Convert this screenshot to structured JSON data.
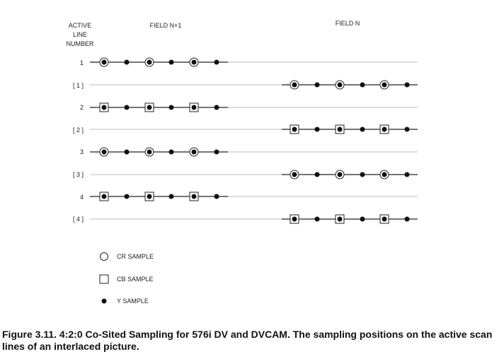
{
  "header": {
    "active_line_label": [
      "ACTIVE",
      "LINE",
      "NUMBER"
    ],
    "field_left": "FIELD N+1",
    "field_right": "FIELD N"
  },
  "rows": [
    {
      "label": "1",
      "field": "left",
      "chroma": "cr"
    },
    {
      "label": "[ 1 ]",
      "field": "right",
      "chroma": "cr"
    },
    {
      "label": "2",
      "field": "left",
      "chroma": "cb"
    },
    {
      "label": "[ 2 ]",
      "field": "right",
      "chroma": "cb"
    },
    {
      "label": "3",
      "field": "left",
      "chroma": "cr"
    },
    {
      "label": "[ 3 ]",
      "field": "right",
      "chroma": "cr"
    },
    {
      "label": "4",
      "field": "left",
      "chroma": "cb"
    },
    {
      "label": "[ 4 ]",
      "field": "right",
      "chroma": "cb"
    }
  ],
  "legend": {
    "cr": "CR SAMPLE",
    "cb": "CB SAMPLE",
    "y": "Y SAMPLE"
  },
  "caption": "Figure 3.11. 4:2:0 Co-Sited Sampling for 576i DV and DVCAM. The sampling positions on the active scan lines of an interlaced picture."
}
